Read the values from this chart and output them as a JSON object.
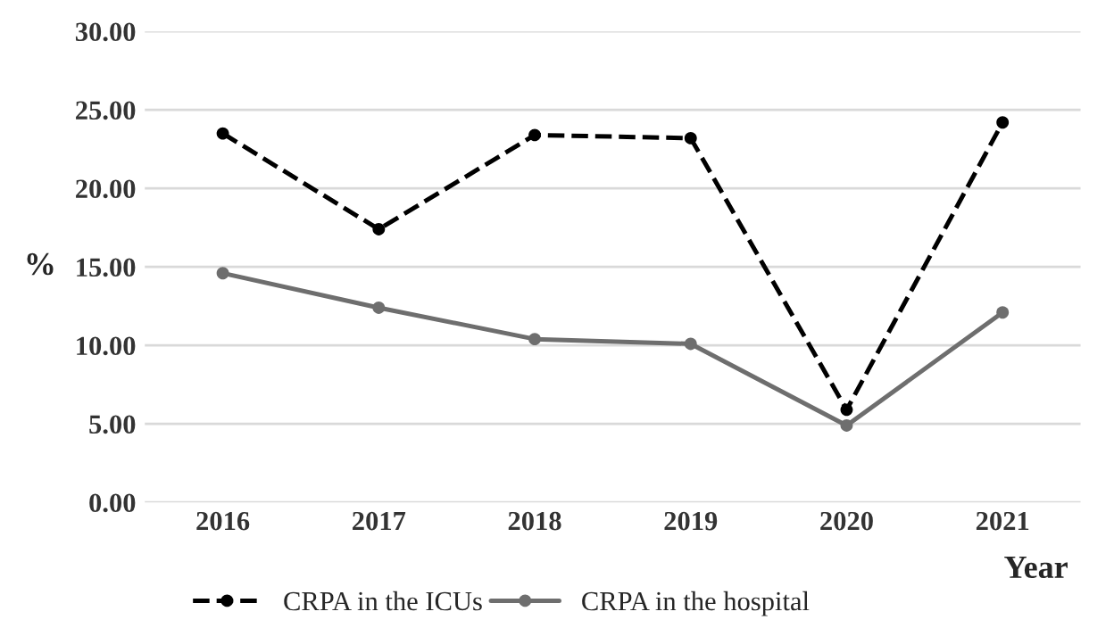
{
  "chart_data": {
    "type": "line",
    "ylabel": "%",
    "xlabel": "Year",
    "categories": [
      "2016",
      "2017",
      "2018",
      "2019",
      "2020",
      "2021"
    ],
    "series": [
      {
        "name": "CRPA in the ICUs",
        "color": "#000000",
        "line_style": "dashed",
        "values": [
          23.5,
          17.4,
          23.4,
          23.2,
          5.9,
          24.2
        ]
      },
      {
        "name": "CRPA in the hospital",
        "color": "#6e6e6e",
        "line_style": "solid",
        "values": [
          14.6,
          12.4,
          10.4,
          10.1,
          4.9,
          12.1
        ]
      }
    ],
    "ylim": [
      0,
      30
    ],
    "yticks": [
      {
        "value": 0,
        "label": "0.00"
      },
      {
        "value": 5,
        "label": "5.00"
      },
      {
        "value": 10,
        "label": "10.00"
      },
      {
        "value": 15,
        "label": "15.00"
      },
      {
        "value": 20,
        "label": "20.00"
      },
      {
        "value": 25,
        "label": "25.00"
      },
      {
        "value": 30,
        "label": "30.00"
      }
    ],
    "grid": "y",
    "legend": "bottom",
    "marker": "circle"
  }
}
